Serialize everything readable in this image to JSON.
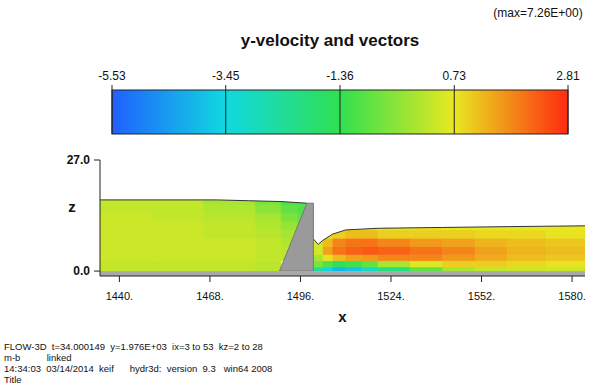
{
  "chart_data": {
    "type": "contour",
    "title": "y-velocity and vectors",
    "subtitle": "(max=7.26E+00)",
    "x_label": "x",
    "y_label": "z",
    "xlim": [
      1434,
      1584
    ],
    "ylim": [
      -1.2,
      27
    ],
    "xticks": [
      {
        "value": 1440,
        "label": "1440."
      },
      {
        "value": 1468,
        "label": "1468."
      },
      {
        "value": 1496,
        "label": "1496."
      },
      {
        "value": 1524,
        "label": "1524."
      },
      {
        "value": 1552,
        "label": "1552."
      },
      {
        "value": 1580,
        "label": "1580."
      }
    ],
    "yticks": [
      {
        "value": 0,
        "label": "0.0"
      },
      {
        "value": 27,
        "label": "27.0"
      }
    ],
    "colorbar": {
      "range": [
        -5.53,
        2.81
      ],
      "ticks": [
        -5.53,
        -3.45,
        -1.36,
        0.73,
        2.81
      ],
      "colors": [
        "#2060ff",
        "#10d8e0",
        "#30e050",
        "#e8e820",
        "#ff2a10"
      ]
    },
    "field": {
      "x_edges": [
        1434,
        1450,
        1466,
        1482,
        1490,
        1495,
        1500,
        1503,
        1506,
        1510,
        1515,
        1520,
        1530,
        1540,
        1550,
        1560,
        1572,
        1584
      ],
      "z_edges": [
        0,
        1,
        2.5,
        4,
        6,
        8,
        10,
        12,
        14,
        16,
        18
      ],
      "values": [
        [
          0.3,
          0.3,
          0.3,
          0.2,
          null,
          null,
          -2.5,
          -3.5,
          -4.0,
          -3.8,
          -3.0,
          -2.0,
          -0.8,
          0.0,
          0.3,
          0.4,
          0.4
        ],
        [
          0.3,
          0.3,
          0.3,
          0.2,
          null,
          null,
          -0.5,
          -1.0,
          -1.5,
          -1.2,
          -0.8,
          0.0,
          0.6,
          1.0,
          1.0,
          0.9,
          0.8
        ],
        [
          0.4,
          0.4,
          0.4,
          0.3,
          0.2,
          null,
          0.0,
          0.8,
          1.2,
          1.5,
          1.6,
          1.8,
          1.8,
          1.6,
          1.4,
          1.2,
          1.1
        ],
        [
          0.4,
          0.4,
          0.4,
          0.3,
          0.2,
          null,
          0.5,
          1.5,
          2.0,
          2.2,
          2.3,
          2.2,
          2.0,
          1.8,
          1.5,
          1.3,
          1.2
        ],
        [
          0.4,
          0.4,
          0.4,
          0.3,
          0.1,
          null,
          0.5,
          1.2,
          1.8,
          2.0,
          2.0,
          1.8,
          1.6,
          1.5,
          1.3,
          1.2,
          1.1
        ],
        [
          0.4,
          0.4,
          0.3,
          0.2,
          0.0,
          null,
          null,
          0.8,
          1.0,
          1.2,
          1.2,
          1.0,
          1.0,
          1.0,
          0.9,
          0.9,
          0.8
        ],
        [
          0.4,
          0.4,
          0.3,
          0.1,
          -0.2,
          -0.5,
          null,
          null,
          null,
          0.8,
          0.8,
          0.8,
          0.8,
          0.7,
          0.7,
          0.7,
          0.7
        ],
        [
          0.4,
          0.3,
          0.2,
          0.0,
          -0.5,
          -0.8,
          null,
          null,
          null,
          null,
          null,
          null,
          null,
          null,
          null,
          null,
          null
        ],
        [
          0.3,
          0.3,
          0.1,
          -0.3,
          -0.8,
          -1.0,
          null,
          null,
          null,
          null,
          null,
          null,
          null,
          null,
          null,
          null,
          null
        ],
        [
          0.3,
          0.3,
          0.0,
          -0.5,
          -1.0,
          -1.0,
          null,
          null,
          null,
          null,
          null,
          null,
          null,
          null,
          null,
          null,
          null
        ]
      ]
    },
    "upstream_surface": {
      "x": [
        1434,
        1470,
        1480,
        1490,
        1498
      ],
      "z": [
        17.3,
        17.3,
        17.1,
        16.9,
        16.5
      ]
    },
    "downstream_surface": {
      "x": [
        1500,
        1501.5,
        1503,
        1506,
        1510,
        1520,
        1540,
        1560,
        1584
      ],
      "z": [
        7.8,
        6.5,
        7.5,
        9.0,
        10.0,
        10.4,
        10.6,
        10.8,
        11.0
      ]
    },
    "gate": {
      "x": [
        1489.5,
        1498,
        1500,
        1500
      ],
      "z": [
        0,
        16.5,
        16.5,
        0
      ]
    },
    "footer": [
      "FLOW-3D  t=34.000149  y=1.976E+03  ix=3 to 53  kz=2 to 28",
      "m-b          linked",
      "14:34:03  03/14/2014  keif      hydr3d:  version  9.3   win64 2008",
      "Title"
    ]
  }
}
